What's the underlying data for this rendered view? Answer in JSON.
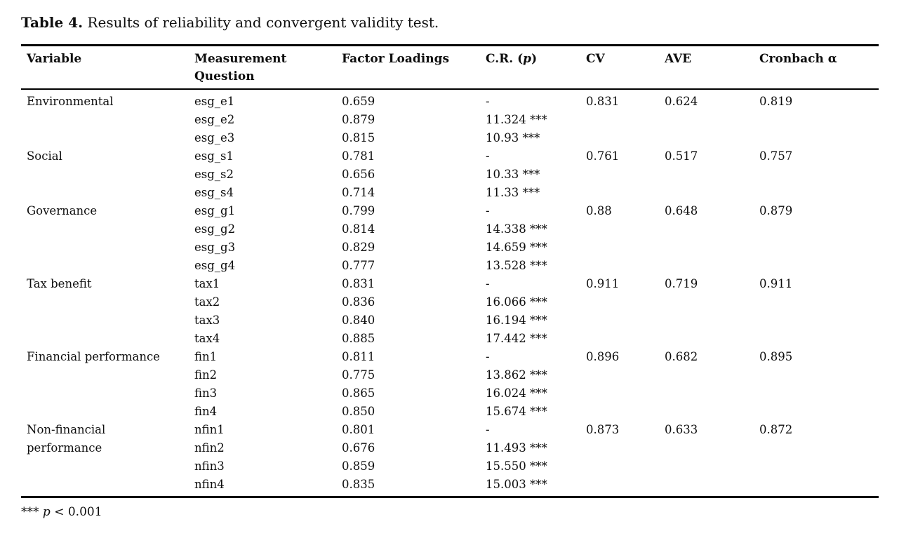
{
  "caption": {
    "label": "Table 4.",
    "text": " Results of reliability and convergent validity test."
  },
  "table": {
    "headers": {
      "variable": "Variable",
      "measurement": "Measurement Question",
      "factor_loadings": "Factor Loadings",
      "cr_prefix": "C.R. (",
      "cr_p": "p",
      "cr_suffix": ")",
      "cv": "CV",
      "ave": "AVE",
      "cronbach": "Cronbach α"
    },
    "rows": [
      [
        "Environmental",
        "esg_e1",
        "0.659",
        "-",
        "0.831",
        "0.624",
        "0.819"
      ],
      [
        "",
        "esg_e2",
        "0.879",
        "11.324 ***",
        "",
        "",
        ""
      ],
      [
        "",
        "esg_e3",
        "0.815",
        "10.93 ***",
        "",
        "",
        ""
      ],
      [
        "Social",
        "esg_s1",
        "0.781",
        "-",
        "0.761",
        "0.517",
        "0.757"
      ],
      [
        "",
        "esg_s2",
        "0.656",
        "10.33 ***",
        "",
        "",
        ""
      ],
      [
        "",
        "esg_s4",
        "0.714",
        "11.33 ***",
        "",
        "",
        ""
      ],
      [
        "Governance",
        "esg_g1",
        "0.799",
        "-",
        "0.88",
        "0.648",
        "0.879"
      ],
      [
        "",
        "esg_g2",
        "0.814",
        "14.338 ***",
        "",
        "",
        ""
      ],
      [
        "",
        "esg_g3",
        "0.829",
        "14.659 ***",
        "",
        "",
        ""
      ],
      [
        "",
        "esg_g4",
        "0.777",
        "13.528 ***",
        "",
        "",
        ""
      ],
      [
        "Tax benefit",
        "tax1",
        "0.831",
        "-",
        "0.911",
        "0.719",
        "0.911"
      ],
      [
        "",
        "tax2",
        "0.836",
        "16.066 ***",
        "",
        "",
        ""
      ],
      [
        "",
        "tax3",
        "0.840",
        "16.194 ***",
        "",
        "",
        ""
      ],
      [
        "",
        "tax4",
        "0.885",
        "17.442 ***",
        "",
        "",
        ""
      ],
      [
        "Financial performance",
        "fin1",
        "0.811",
        "-",
        "0.896",
        "0.682",
        "0.895"
      ],
      [
        "",
        "fin2",
        "0.775",
        "13.862 ***",
        "",
        "",
        ""
      ],
      [
        "",
        "fin3",
        "0.865",
        "16.024 ***",
        "",
        "",
        ""
      ],
      [
        "",
        "fin4",
        "0.850",
        "15.674 ***",
        "",
        "",
        ""
      ],
      [
        "Non-financial",
        "nfin1",
        "0.801",
        "-",
        "0.873",
        "0.633",
        "0.872"
      ],
      [
        "performance",
        "nfin2",
        "0.676",
        "11.493 ***",
        "",
        "",
        ""
      ],
      [
        "",
        "nfin3",
        "0.859",
        "15.550 ***",
        "",
        "",
        ""
      ],
      [
        "",
        "nfin4",
        "0.835",
        "15.003 ***",
        "",
        "",
        ""
      ]
    ]
  },
  "footnote": {
    "stars": "*** ",
    "p": "p",
    "rest": " < 0.001"
  }
}
